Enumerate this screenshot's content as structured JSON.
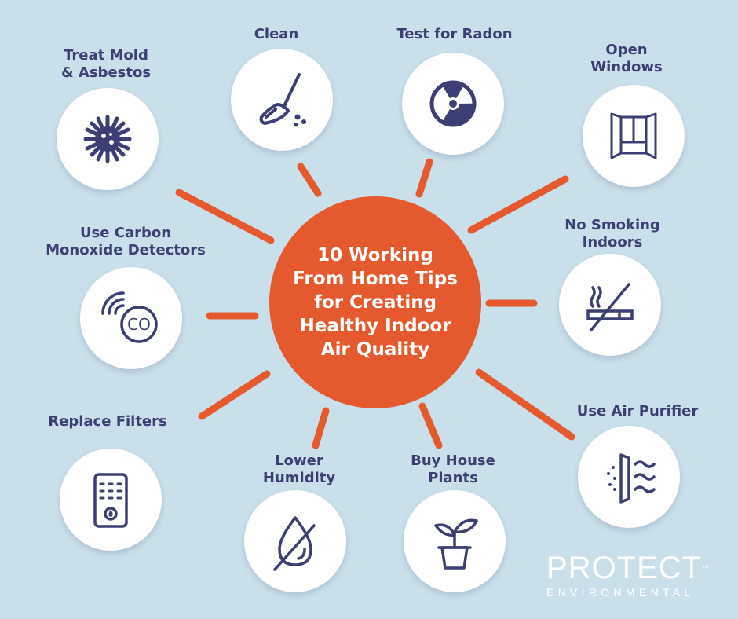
{
  "title": "10 Working From Home Tips for Creating Healthy Indoor Air Quality",
  "colors": {
    "background": "#c9e0ea",
    "accent": "#e45a2e",
    "icon": "#3c3f73",
    "circle": "#ffffff"
  },
  "tips": [
    {
      "label": "Treat Mold\n& Asbestos",
      "icon": "mold-icon"
    },
    {
      "label": "Clean",
      "icon": "broom-icon"
    },
    {
      "label": "Test for Radon",
      "icon": "radiation-icon"
    },
    {
      "label": "Open\nWindows",
      "icon": "window-icon"
    },
    {
      "label": "No Smoking\nIndoors",
      "icon": "no-smoking-icon"
    },
    {
      "label": "Use Air Purifier",
      "icon": "air-purifier-icon"
    },
    {
      "label": "Buy House\nPlants",
      "icon": "plant-icon"
    },
    {
      "label": "Lower\nHumidity",
      "icon": "no-droplet-icon"
    },
    {
      "label": "Replace Filters",
      "icon": "thermostat-icon"
    },
    {
      "label": "Use Carbon\nMonoxide Detectors",
      "icon": "co-detector-icon"
    }
  ],
  "logo": {
    "name": "PROTECT",
    "trademark": "™",
    "tagline": "ENVIRONMENTAL"
  }
}
